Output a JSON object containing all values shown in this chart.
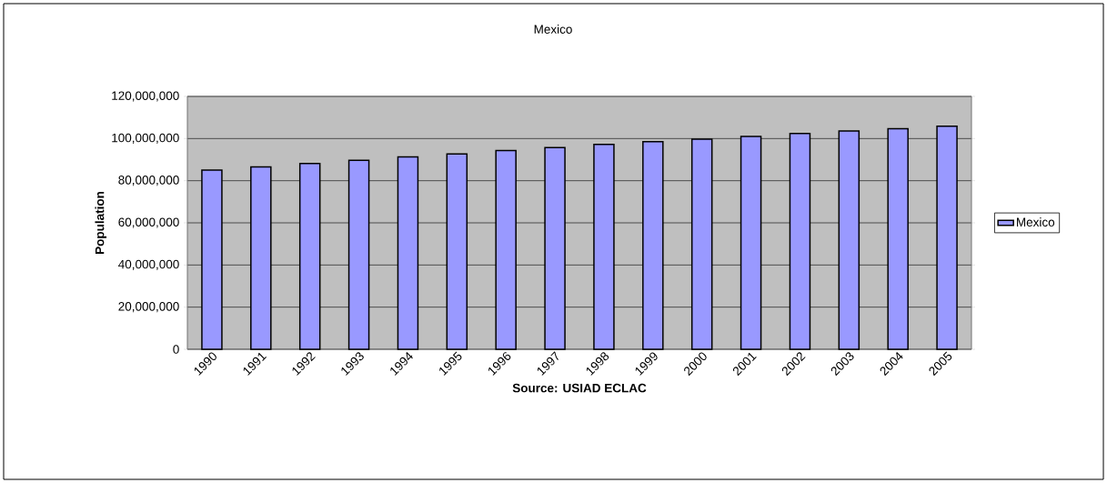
{
  "chart_data": {
    "type": "bar",
    "title": "Mexico",
    "xlabel": "Source: USIAD ECLAC",
    "ylabel": "Population",
    "categories": [
      "1990",
      "1991",
      "1992",
      "1993",
      "1994",
      "1995",
      "1996",
      "1997",
      "1998",
      "1999",
      "2000",
      "2001",
      "2002",
      "2003",
      "2004",
      "2005"
    ],
    "series": [
      {
        "name": "Mexico",
        "color": "#9999ff",
        "values": [
          85000000,
          86600000,
          88200000,
          89700000,
          91300000,
          92700000,
          94300000,
          95700000,
          97200000,
          98500000,
          99700000,
          101000000,
          102400000,
          103600000,
          104700000,
          105900000
        ]
      }
    ],
    "ylim": [
      0,
      120000000
    ],
    "yticks": [
      0,
      {
        "value": 20000000,
        "label": "20,000,000"
      },
      {
        "value": 40000000,
        "label": "40,000,000"
      },
      {
        "value": 60000000,
        "label": "60,000,000"
      },
      {
        "value": 80000000,
        "label": "80,000,000"
      },
      {
        "value": 100000000,
        "label": "100,000,000"
      },
      {
        "value": 120000000,
        "label": "120,000,000"
      }
    ],
    "grid": "y",
    "legend": "right"
  }
}
